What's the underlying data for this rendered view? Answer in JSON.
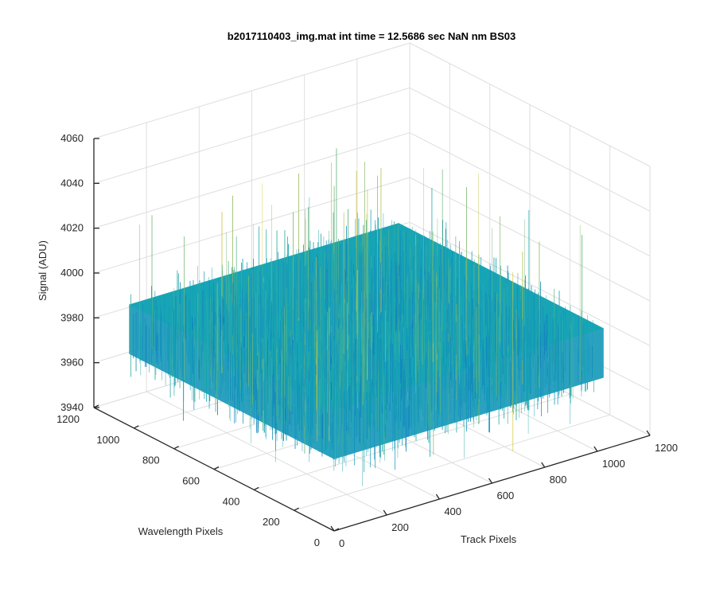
{
  "chart_data": {
    "type": "surface3d",
    "title": "b2017110403_img.mat int time = 12.5686 sec  NaN nm BS03",
    "xlabel": "Track Pixels",
    "ylabel": "Wavelength Pixels",
    "zlabel": "Signal (ADU)",
    "xlim": [
      0,
      1200
    ],
    "ylim": [
      0,
      1200
    ],
    "zlim": [
      3940,
      4060
    ],
    "xticks": [
      "0",
      "200",
      "400",
      "600",
      "800",
      "1000",
      "1200"
    ],
    "yticks": [
      "0",
      "200",
      "400",
      "600",
      "800",
      "1000",
      "1200"
    ],
    "zticks": [
      "3940",
      "3960",
      "3980",
      "4000",
      "4020",
      "4040",
      "4060"
    ],
    "data_extent": {
      "x": [
        0,
        1024
      ],
      "y": [
        0,
        1024
      ]
    },
    "signal_mean": 3984,
    "signal_noise_range": [
      3950,
      4040
    ],
    "grid": true,
    "box": "off",
    "colormap": "parula",
    "colors": {
      "low": "#1469c8",
      "mid": "#14a6b4",
      "high": "#d2c73a"
    }
  }
}
